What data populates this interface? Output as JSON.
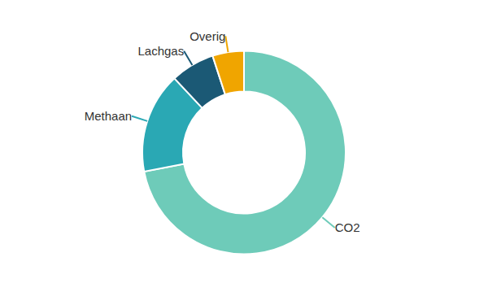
{
  "chart_data": {
    "type": "donut",
    "categories": [
      "CO2",
      "Methaan",
      "Lachgas",
      "Overig"
    ],
    "values": [
      72,
      16,
      7,
      5
    ],
    "colors": [
      "#6ECBB9",
      "#2AA8B4",
      "#1B5975",
      "#F0A500"
    ]
  }
}
